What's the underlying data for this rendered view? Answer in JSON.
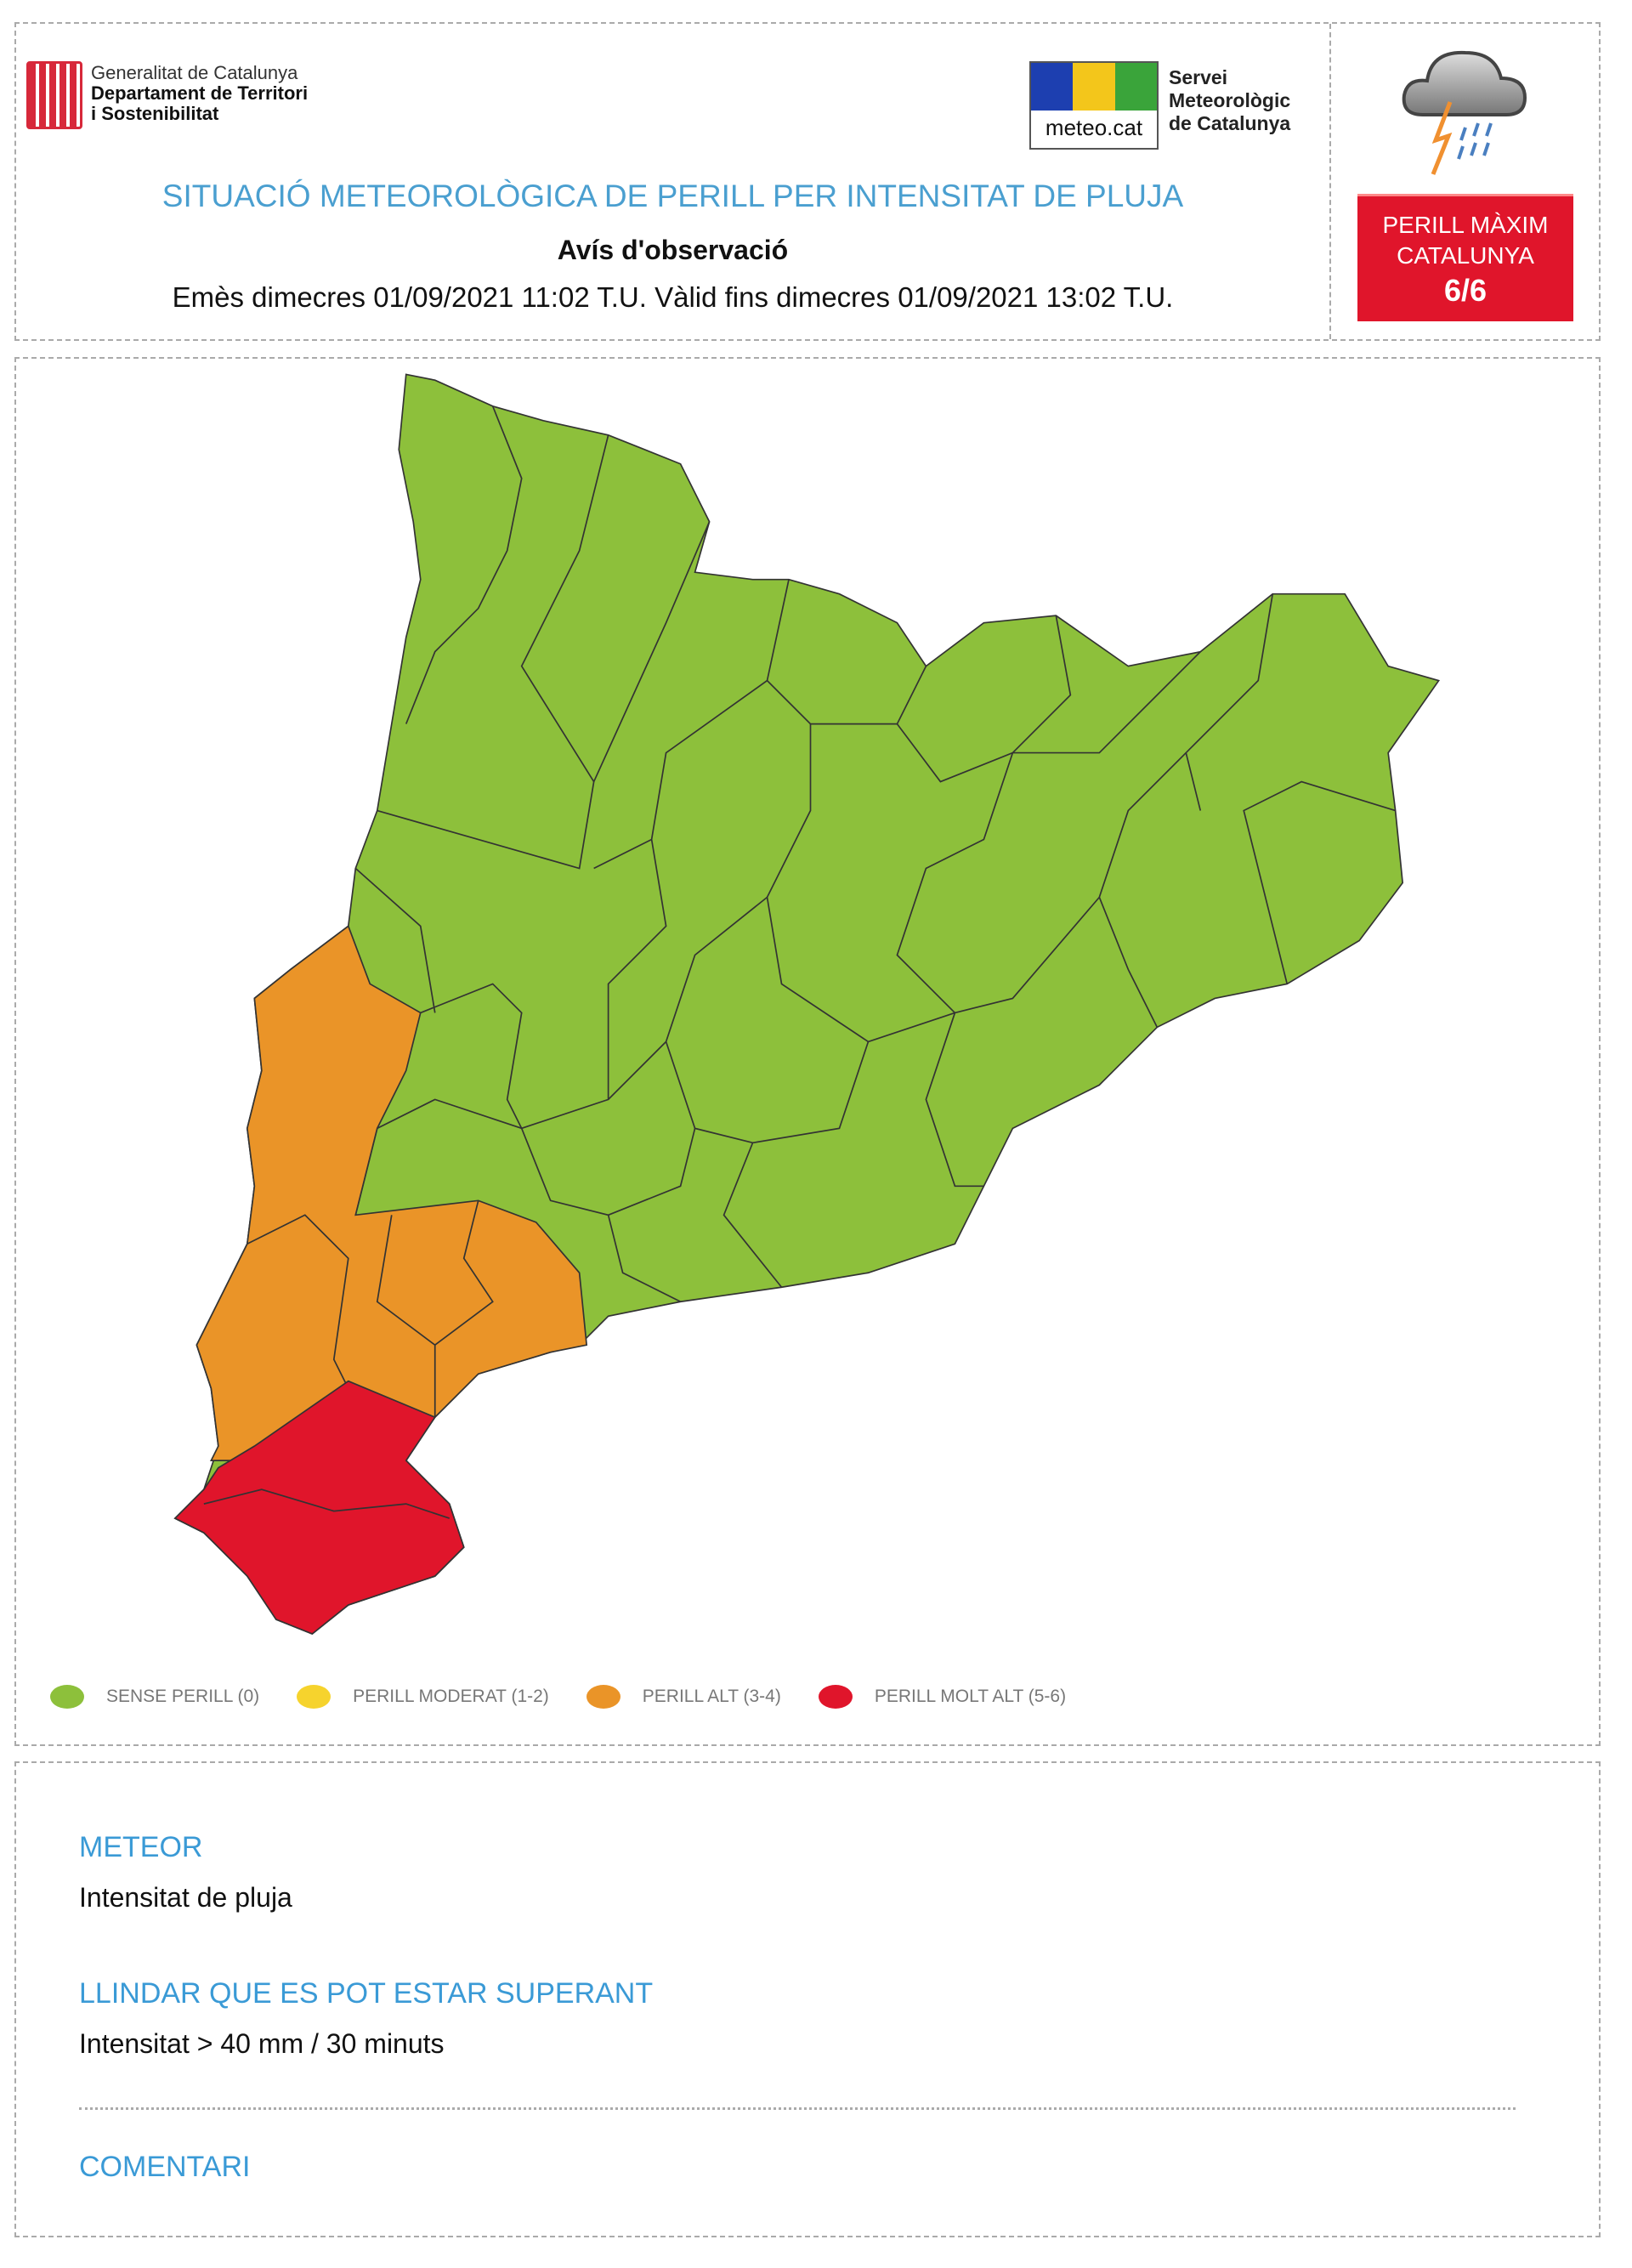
{
  "header": {
    "org_line1": "Generalitat de Catalunya",
    "org_line2": "Departament de Territori",
    "org_line3": "i Sostenibilitat",
    "meteo_logo_label": "meteo.cat",
    "service_line1": "Servei",
    "service_line2": "Meteorològic",
    "service_line3": "de Catalunya",
    "title": "SITUACIÓ METEOROLÒGICA DE PERILL PER INTENSITAT DE PLUJA",
    "subtitle": "Avís d'observació",
    "validity": "Emès dimecres 01/09/2021 11:02 T.U. Vàlid fins dimecres 01/09/2021 13:02 T.U.",
    "icon": "thunderstorm-rain-icon"
  },
  "badge": {
    "line1": "PERILL MÀXIM",
    "line2": "CATALUNYA",
    "level": "6/6",
    "color": "#e0152b"
  },
  "legend": [
    {
      "label": "SENSE PERILL (0)",
      "color": "#8dc03b"
    },
    {
      "label": "PERILL MODERAT (1-2)",
      "color": "#f6d32d"
    },
    {
      "label": "PERILL ALT (3-4)",
      "color": "#ea9428"
    },
    {
      "label": "PERILL MOLT ALT (5-6)",
      "color": "#e0152b"
    }
  ],
  "map": {
    "regions_levels": {
      "north_central_east": "SENSE PERILL (0)",
      "southwest_ebre": "PERILL ALT (3-4)",
      "delta_ebre_south": "PERILL MOLT ALT (5-6)"
    }
  },
  "details": {
    "meteor_heading": "METEOR",
    "meteor_value": "Intensitat de pluja",
    "threshold_heading": "LLINDAR QUE ES POT ESTAR SUPERANT",
    "threshold_value": "Intensitat > 40 mm / 30 minuts",
    "comment_heading": "COMENTARI"
  }
}
